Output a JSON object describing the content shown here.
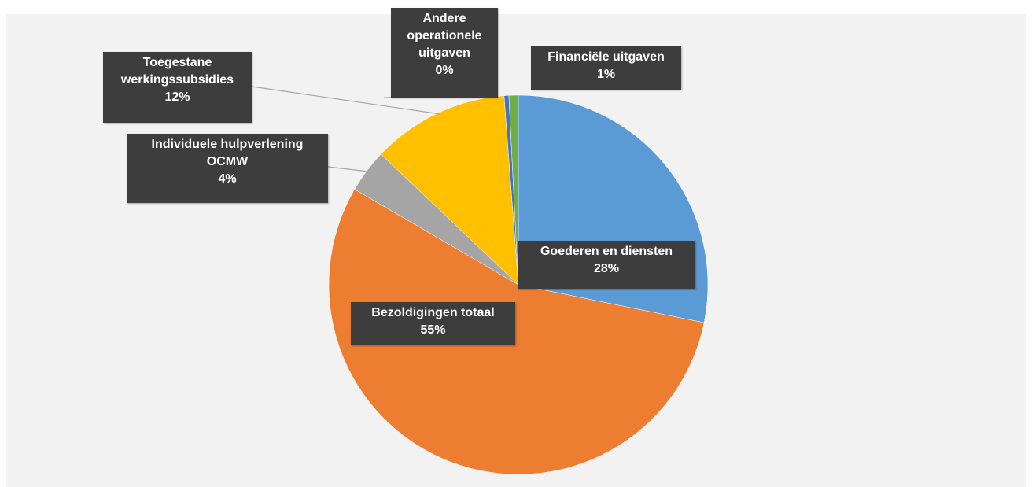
{
  "chart_data": {
    "type": "pie",
    "categories": [
      "Goederen en diensten",
      "Bezoldigingen totaal",
      "Individuele hulpverlening OCMW",
      "Toegestane werkingssubsidies",
      "Andere operationele uitgaven",
      "Financiële uitgaven"
    ],
    "values": [
      28.2,
      55.2,
      3.7,
      11.7,
      0.4,
      0.8
    ],
    "value_labels": [
      "28%",
      "55%",
      "4%",
      "12%",
      "0%",
      "1%"
    ],
    "colors": [
      "#5b9bd5",
      "#ed7d31",
      "#a5a5a5",
      "#ffc000",
      "#4472c4",
      "#70ad47"
    ]
  }
}
